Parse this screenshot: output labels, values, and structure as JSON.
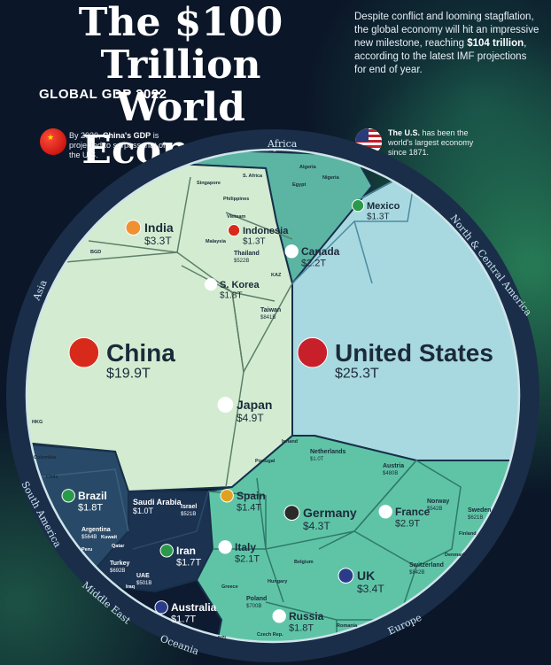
{
  "header": {
    "title_line1": "The $100 Trillion",
    "title_line2": "World Economy",
    "subtitle": "GLOBAL GDP 2022",
    "desc_pre": "Despite conflict and looming stagflation, the global economy will hit an impressive new milestone, reaching ",
    "desc_bold": "$104 trillion",
    "desc_post": ", according to the latest IMF projections for end of year."
  },
  "notes": {
    "china_pre": "By 2030, ",
    "china_bold": "China's GDP",
    "china_post": " is projected to surpass that of the U.S.",
    "us_bold": "The U.S.",
    "us_post": " has been the world's largest economy since 1871."
  },
  "colors": {
    "asia": "#d3ecd1",
    "north_america": "#a9d9e0",
    "europe": "#5fc4a6",
    "middle_east": "#1b3250",
    "south_america": "#284a68",
    "africa": "#5bb5a2",
    "oceania": "#0d1a30"
  },
  "chart_data": {
    "type": "voronoi-treemap",
    "title": "The $100 Trillion World Economy",
    "subtitle": "GLOBAL GDP 2022",
    "regions": [
      "Africa",
      "North & Central America",
      "Europe",
      "Oceania",
      "Middle East",
      "South America",
      "Asia"
    ],
    "countries": [
      {
        "name": "United States",
        "label": "$25.3T",
        "value": 25.3,
        "region": "North & Central America"
      },
      {
        "name": "China",
        "label": "$19.9T",
        "value": 19.9,
        "region": "Asia"
      },
      {
        "name": "Japan",
        "label": "$4.9T",
        "value": 4.9,
        "region": "Asia"
      },
      {
        "name": "Germany",
        "label": "$4.3T",
        "value": 4.3,
        "region": "Europe"
      },
      {
        "name": "India",
        "label": "$3.3T",
        "value": 3.3,
        "region": "Asia"
      },
      {
        "name": "UK",
        "label": "$3.4T",
        "value": 3.4,
        "region": "Europe"
      },
      {
        "name": "France",
        "label": "$2.9T",
        "value": 2.9,
        "region": "Europe"
      },
      {
        "name": "Canada",
        "label": "$2.2T",
        "value": 2.2,
        "region": "North & Central America"
      },
      {
        "name": "Italy",
        "label": "$2.1T",
        "value": 2.1,
        "region": "Europe"
      },
      {
        "name": "Russia",
        "label": "$1.8T",
        "value": 1.8,
        "region": "Europe"
      },
      {
        "name": "S. Korea",
        "label": "$1.8T",
        "value": 1.8,
        "region": "Asia"
      },
      {
        "name": "Brazil",
        "label": "$1.8T",
        "value": 1.8,
        "region": "South America"
      },
      {
        "name": "Australia",
        "label": "$1.7T",
        "value": 1.7,
        "region": "Oceania"
      },
      {
        "name": "Iran",
        "label": "$1.7T",
        "value": 1.7,
        "region": "Middle East"
      },
      {
        "name": "Spain",
        "label": "$1.4T",
        "value": 1.4,
        "region": "Europe"
      },
      {
        "name": "Mexico",
        "label": "$1.3T",
        "value": 1.3,
        "region": "North & Central America"
      },
      {
        "name": "Indonesia",
        "label": "$1.3T",
        "value": 1.3,
        "region": "Asia"
      },
      {
        "name": "Saudi Arabia",
        "label": "$1.0T",
        "value": 1.0,
        "region": "Middle East"
      },
      {
        "name": "Netherlands",
        "label": "$1.0T",
        "value": 1.0,
        "region": "Europe"
      },
      {
        "name": "Taiwan",
        "label": "$841B",
        "value": 0.841,
        "region": "Asia"
      },
      {
        "name": "Turkey",
        "label": "$692B",
        "value": 0.692,
        "region": "Middle East"
      },
      {
        "name": "Switzerland",
        "label": "$842B",
        "value": 0.842,
        "region": "Europe"
      },
      {
        "name": "Poland",
        "label": "$700B",
        "value": 0.7,
        "region": "Europe"
      },
      {
        "name": "Israel",
        "label": "$521B",
        "value": 0.521,
        "region": "Middle East"
      },
      {
        "name": "UAE",
        "label": "$501B",
        "value": 0.501,
        "region": "Middle East"
      },
      {
        "name": "Argentina",
        "label": "$564B",
        "value": 0.564,
        "region": "South America"
      },
      {
        "name": "Thailand",
        "label": "$522B",
        "value": 0.522,
        "region": "Asia"
      },
      {
        "name": "Austria",
        "label": "$480B",
        "value": 0.48,
        "region": "Europe"
      },
      {
        "name": "Norway",
        "label": "$542B",
        "value": 0.542,
        "region": "Europe"
      },
      {
        "name": "Sweden",
        "label": "$621B",
        "value": 0.621,
        "region": "Europe"
      }
    ],
    "small_labels": [
      "S. Africa",
      "Egypt",
      "Nigeria",
      "Algeria",
      "Singapore",
      "Philippines",
      "Vietnam",
      "Malaysia",
      "BGD",
      "KAZ",
      "HKG",
      "Colombia",
      "Chile",
      "Peru",
      "Kuwait",
      "Qatar",
      "Iraq",
      "Ireland",
      "Portugal",
      "Belgium",
      "Denmark",
      "Finland",
      "Greece",
      "Hungary",
      "Czech Rep.",
      "Romania",
      "NZL"
    ]
  }
}
